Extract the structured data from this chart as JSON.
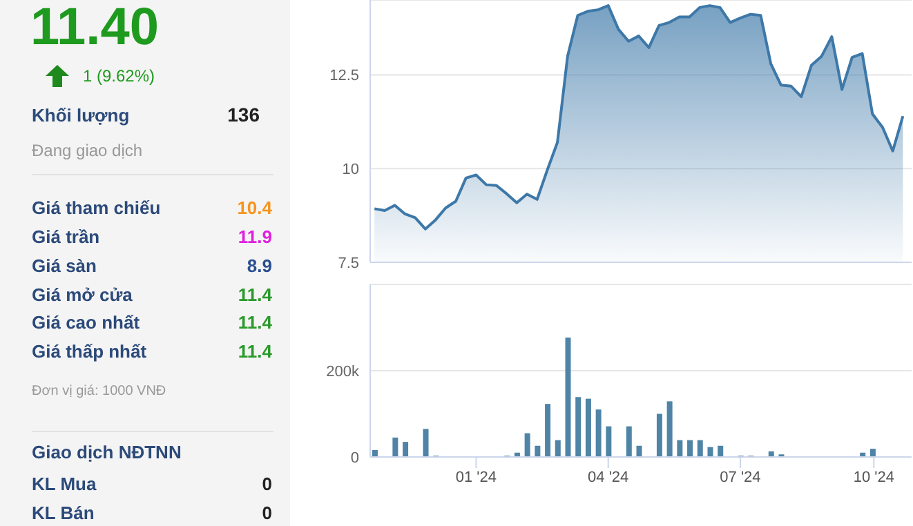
{
  "chart_data": [
    {
      "type": "other",
      "title": "11.40",
      "subtitle": "1 (9.62%)",
      "annotations": [
        "Khối lượng",
        "136",
        "Đang giao dịch",
        "Giá tham chiếu",
        "10.4",
        "Giá trần",
        "11.9",
        "Giá sàn",
        "8.9",
        "Giá mở cửa",
        "11.4",
        "Giá cao nhất",
        "11.4",
        "Giá thấp nhất",
        "11.4",
        "Đơn vị giá: 1000 VNĐ",
        "Giao dịch NĐTNN",
        "KL Mua",
        "0",
        "KL Bán",
        "0"
      ]
    },
    {
      "type": "area",
      "color": "#3d78a8",
      "x": [
        "2023-10-23",
        "2023-10-30",
        "2023-11-06",
        "2023-11-13",
        "2023-11-20",
        "2023-11-27",
        "2023-12-04",
        "2023-12-11",
        "2023-12-18",
        "2023-12-25",
        "2024-01-01",
        "2024-01-08",
        "2024-01-15",
        "2024-01-22",
        "2024-01-29",
        "2024-02-05",
        "2024-02-12",
        "2024-02-19",
        "2024-02-26",
        "2024-03-04",
        "2024-03-11",
        "2024-03-18",
        "2024-03-25",
        "2024-04-01",
        "2024-04-08",
        "2024-04-15",
        "2024-04-22",
        "2024-04-29",
        "2024-05-06",
        "2024-05-13",
        "2024-05-20",
        "2024-05-27",
        "2024-06-03",
        "2024-06-10",
        "2024-06-17",
        "2024-06-24",
        "2024-07-01",
        "2024-07-08",
        "2024-07-15",
        "2024-07-22",
        "2024-07-29",
        "2024-08-05",
        "2024-08-12",
        "2024-08-19",
        "2024-08-26",
        "2024-09-02",
        "2024-09-09",
        "2024-09-16",
        "2024-09-23",
        "2024-09-30",
        "2024-10-07",
        "2024-10-14",
        "2024-10-21"
      ],
      "values": [
        8.93,
        8.88,
        9.02,
        8.79,
        8.69,
        8.39,
        8.63,
        8.95,
        9.13,
        9.75,
        9.83,
        9.57,
        9.55,
        9.33,
        9.09,
        9.32,
        9.18,
        9.96,
        10.7,
        13.0,
        14.09,
        14.2,
        14.24,
        14.35,
        13.72,
        13.4,
        13.54,
        13.23,
        13.82,
        13.9,
        14.05,
        14.05,
        14.3,
        14.35,
        14.3,
        13.9,
        14.02,
        14.12,
        14.09,
        12.8,
        12.23,
        12.2,
        11.92,
        12.76,
        13.0,
        13.52,
        12.11,
        12.97,
        13.07,
        11.46,
        11.1,
        10.47,
        11.4
      ],
      "xlim": [
        "2023-10-20",
        "2024-10-27"
      ],
      "ylim": [
        7.5,
        14.5
      ],
      "yticks": [
        7.5,
        10,
        12.5
      ],
      "grid": "y",
      "tick_labels": "y"
    },
    {
      "type": "bar",
      "color": "#4f84a6",
      "x": [
        "2023-10-23",
        "2023-10-30",
        "2023-11-06",
        "2023-11-13",
        "2023-11-20",
        "2023-11-27",
        "2023-12-04",
        "2023-12-11",
        "2023-12-18",
        "2023-12-25",
        "2024-01-01",
        "2024-01-08",
        "2024-01-15",
        "2024-01-22",
        "2024-01-29",
        "2024-02-05",
        "2024-02-12",
        "2024-02-19",
        "2024-02-26",
        "2024-03-04",
        "2024-03-11",
        "2024-03-18",
        "2024-03-25",
        "2024-04-01",
        "2024-04-08",
        "2024-04-15",
        "2024-04-22",
        "2024-04-29",
        "2024-05-06",
        "2024-05-13",
        "2024-05-20",
        "2024-05-27",
        "2024-06-03",
        "2024-06-10",
        "2024-06-17",
        "2024-06-24",
        "2024-07-01",
        "2024-07-08",
        "2024-07-15",
        "2024-07-22",
        "2024-07-29",
        "2024-08-05",
        "2024-08-12",
        "2024-08-19",
        "2024-08-26",
        "2024-09-02",
        "2024-09-09",
        "2024-09-16",
        "2024-09-23",
        "2024-09-30",
        "2024-10-07",
        "2024-10-14",
        "2024-10-21"
      ],
      "values": [
        16000,
        0,
        45000,
        35000,
        0,
        65000,
        3000,
        0,
        0,
        0,
        0,
        0,
        0,
        3000,
        10000,
        55000,
        26000,
        123000,
        39000,
        277000,
        139000,
        135000,
        110000,
        71000,
        0,
        71000,
        26000,
        0,
        100000,
        129000,
        39000,
        39000,
        39000,
        23000,
        26000,
        0,
        3000,
        3000,
        0,
        13000,
        6000,
        0,
        0,
        0,
        0,
        0,
        0,
        0,
        10000,
        19000,
        0,
        0,
        0
      ],
      "xlim": [
        "2023-10-20",
        "2024-10-27"
      ],
      "xticks": [
        {
          "value": "2024-01-01",
          "label": "01 '24"
        },
        {
          "value": "2024-04-01",
          "label": "04 '24"
        },
        {
          "value": "2024-07-01",
          "label": "07 '24"
        },
        {
          "value": "2024-10-01",
          "label": "10 '24"
        }
      ],
      "ylim": [
        0,
        400000
      ],
      "yticks": [
        {
          "value": 0,
          "label": "0"
        },
        {
          "value": 200000,
          "label": "200k"
        }
      ],
      "grid": "y"
    }
  ]
}
